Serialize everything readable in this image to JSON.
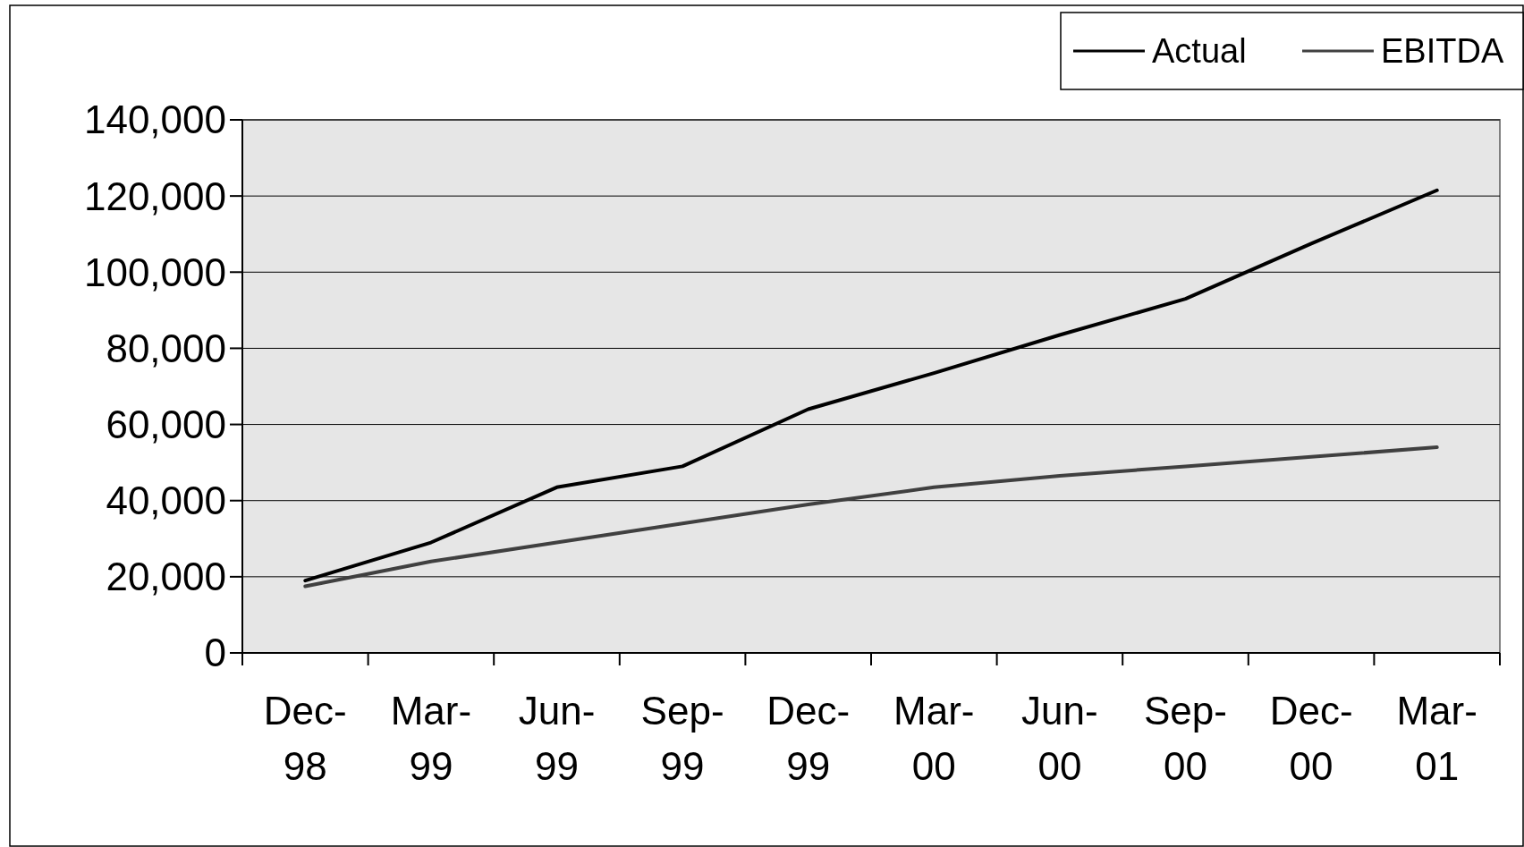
{
  "chart_data": {
    "type": "line",
    "categories": [
      "Dec-98",
      "Mar-99",
      "Jun-99",
      "Sep-99",
      "Dec-99",
      "Mar-00",
      "Jun-00",
      "Sep-00",
      "Dec-00",
      "Mar-01"
    ],
    "series": [
      {
        "name": "Actual",
        "color": "#000000",
        "values": [
          19000,
          29000,
          43500,
          49000,
          64000,
          73500,
          83500,
          93000,
          107500,
          121500
        ]
      },
      {
        "name": "EBITDA",
        "color": "#404040",
        "values": [
          17500,
          24000,
          29000,
          34000,
          39000,
          43500,
          46500,
          49000,
          51500,
          54000
        ]
      }
    ],
    "ylim": [
      0,
      140000
    ],
    "yticks": [
      {
        "value": 0,
        "label": "0"
      },
      {
        "value": 20000,
        "label": "20,000"
      },
      {
        "value": 40000,
        "label": "40,000"
      },
      {
        "value": 60000,
        "label": "60,000"
      },
      {
        "value": 80000,
        "label": "80,000"
      },
      {
        "value": 100000,
        "label": "100,000"
      },
      {
        "value": 120000,
        "label": "120,000"
      },
      {
        "value": 140000,
        "label": "140,000"
      }
    ],
    "grid": "y",
    "legend": "top right",
    "marker": "none",
    "line_style": "solid"
  }
}
